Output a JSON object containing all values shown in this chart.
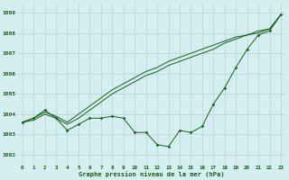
{
  "title": "Graphe pression niveau de la mer (hPa)",
  "x_hours": [
    0,
    1,
    2,
    3,
    4,
    5,
    6,
    7,
    8,
    9,
    10,
    11,
    12,
    13,
    14,
    15,
    16,
    17,
    18,
    19,
    20,
    21,
    22,
    23
  ],
  "line1": [
    1003.6,
    1003.8,
    1004.2,
    1003.8,
    1003.2,
    1003.5,
    1003.8,
    1003.8,
    1003.9,
    1003.8,
    1003.1,
    1003.1,
    1002.5,
    1002.4,
    1003.2,
    1003.1,
    1003.4,
    1004.5,
    1005.3,
    1006.3,
    1007.2,
    1007.9,
    1008.1,
    1008.9
  ],
  "line2": [
    1003.6,
    1003.8,
    1004.1,
    1003.9,
    1003.6,
    1004.0,
    1004.4,
    1004.8,
    1005.2,
    1005.5,
    1005.8,
    1006.1,
    1006.3,
    1006.6,
    1006.8,
    1007.0,
    1007.2,
    1007.4,
    1007.6,
    1007.8,
    1007.9,
    1008.1,
    1008.2,
    1008.9
  ],
  "line3": [
    1003.6,
    1003.7,
    1004.0,
    1003.8,
    1003.5,
    1003.8,
    1004.2,
    1004.6,
    1005.0,
    1005.3,
    1005.6,
    1005.9,
    1006.1,
    1006.4,
    1006.6,
    1006.8,
    1007.0,
    1007.2,
    1007.5,
    1007.7,
    1007.9,
    1008.0,
    1008.2,
    1008.9
  ],
  "line_color": "#1a5c1a",
  "marker_color": "#1a5c1a",
  "bg_color": "#d5eef0",
  "grid_color": "#b8d4d8",
  "label_color": "#1a5c1a",
  "ylim": [
    1001.5,
    1009.5
  ],
  "yticks": [
    1002,
    1003,
    1004,
    1005,
    1006,
    1007,
    1008,
    1009
  ],
  "xlim": [
    -0.5,
    23.5
  ],
  "figsize": [
    3.2,
    2.0
  ],
  "dpi": 100
}
